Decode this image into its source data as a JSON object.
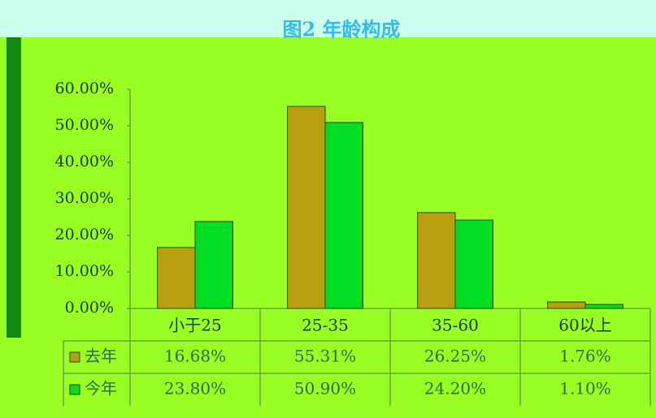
{
  "chart_data": {
    "type": "bar",
    "title": "图2 年龄构成",
    "categories": [
      "小于25",
      "25-35",
      "35-60",
      "60以上"
    ],
    "series": [
      {
        "name": "去年",
        "color": "#b8a010",
        "values": [
          16.68,
          55.31,
          26.25,
          1.76
        ],
        "value_labels": [
          "16.68%",
          "55.31%",
          "26.25%",
          "1.76%"
        ]
      },
      {
        "name": "今年",
        "color": "#00dd22",
        "values": [
          23.8,
          50.9,
          24.2,
          1.1
        ],
        "value_labels": [
          "23.80%",
          "50.90%",
          "24.20%",
          "1.10%"
        ]
      }
    ],
    "ylim": [
      0,
      60
    ],
    "yticks": [
      {
        "value": 0,
        "label": "0.00%"
      },
      {
        "value": 10,
        "label": "10.00%"
      },
      {
        "value": 20,
        "label": "20.00%"
      },
      {
        "value": 30,
        "label": "30.00%"
      },
      {
        "value": 40,
        "label": "40.00%"
      },
      {
        "value": 50,
        "label": "50.00%"
      },
      {
        "value": 60,
        "label": "60.00%"
      }
    ],
    "grid": false,
    "legend": "table"
  }
}
